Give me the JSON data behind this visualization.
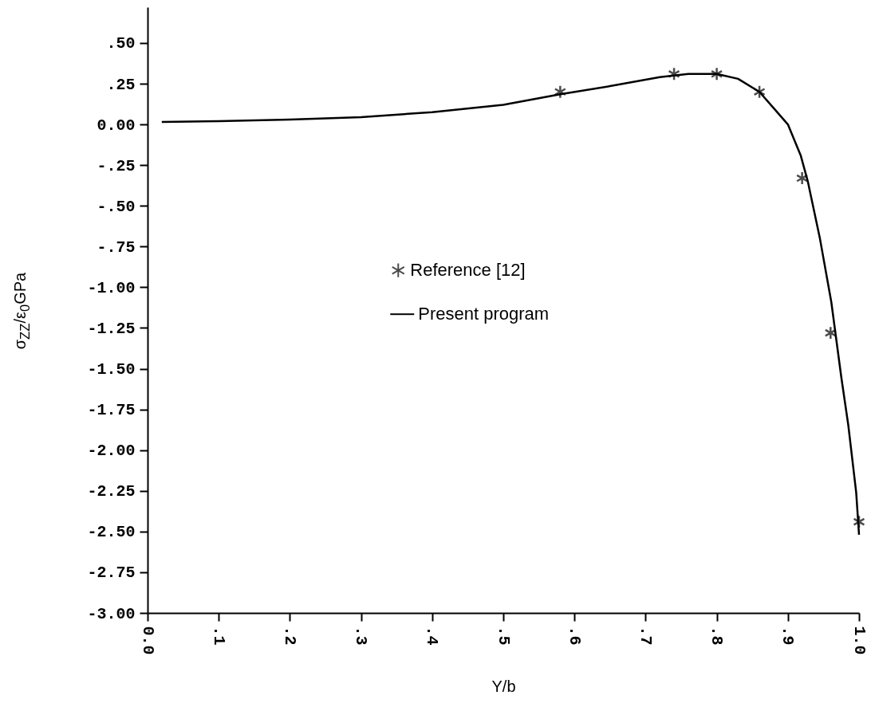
{
  "chart_data": {
    "type": "line",
    "xlabel": "Y/b",
    "ylabel": "σ$_{ZZ}$/ε$_{0}$GPa",
    "xlim": [
      0,
      1.0
    ],
    "ylim": [
      -3.0,
      0.72
    ],
    "xticks": [
      {
        "value": 0,
        "label": "0.0"
      },
      {
        "value": 0.1,
        "label": ".1"
      },
      {
        "value": 0.2,
        "label": ".2"
      },
      {
        "value": 0.3,
        "label": ".3"
      },
      {
        "value": 0.4,
        "label": ".4"
      },
      {
        "value": 0.5,
        "label": ".5"
      },
      {
        "value": 0.6,
        "label": ".6"
      },
      {
        "value": 0.7,
        "label": ".7"
      },
      {
        "value": 0.8,
        "label": ".8"
      },
      {
        "value": 0.9,
        "label": ".9"
      },
      {
        "value": 1.0,
        "label": "1.0"
      }
    ],
    "yticks": [
      {
        "value": -3.0,
        "label": "-3.00"
      },
      {
        "value": -2.75,
        "label": "-2.75"
      },
      {
        "value": -2.5,
        "label": "-2.50"
      },
      {
        "value": -2.25,
        "label": "-2.25"
      },
      {
        "value": -2.0,
        "label": "-2.00"
      },
      {
        "value": -1.75,
        "label": "-1.75"
      },
      {
        "value": -1.5,
        "label": "-1.50"
      },
      {
        "value": -1.25,
        "label": "-1.25"
      },
      {
        "value": -1.0,
        "label": "-1.00"
      },
      {
        "value": -0.75,
        "label": "-.75"
      },
      {
        "value": -0.5,
        "label": "-.50"
      },
      {
        "value": -0.25,
        "label": "-.25"
      },
      {
        "value": 0,
        "label": "0.00"
      },
      {
        "value": 0.25,
        "label": ".25"
      },
      {
        "value": 0.5,
        "label": ".50"
      }
    ],
    "grid": false,
    "legend": "center",
    "series": [
      {
        "name": "Reference [12]",
        "type": "scatter",
        "marker": "cross",
        "color": "#000000",
        "x": [
          0.58,
          0.74,
          0.8,
          0.86,
          0.92,
          0.96,
          1.0
        ],
        "values": [
          0.2,
          0.31,
          0.31,
          0.2,
          -0.33,
          -1.28,
          -2.44
        ]
      },
      {
        "name": "Present program",
        "color": "#000000",
        "line_style": "solid",
        "x": [
          0.02,
          0.1,
          0.2,
          0.3,
          0.4,
          0.5,
          0.58,
          0.65,
          0.72,
          0.76,
          0.8,
          0.83,
          0.86,
          0.88,
          0.9,
          0.918,
          0.928,
          0.945,
          0.961,
          0.975,
          0.985,
          0.996,
          1.0
        ],
        "values": [
          0.015,
          0.02,
          0.03,
          0.045,
          0.075,
          0.12,
          0.185,
          0.235,
          0.29,
          0.31,
          0.31,
          0.28,
          0.2,
          0.1,
          0.0,
          -0.19,
          -0.35,
          -0.7,
          -1.09,
          -1.55,
          -1.85,
          -2.26,
          -2.52
        ]
      }
    ]
  }
}
